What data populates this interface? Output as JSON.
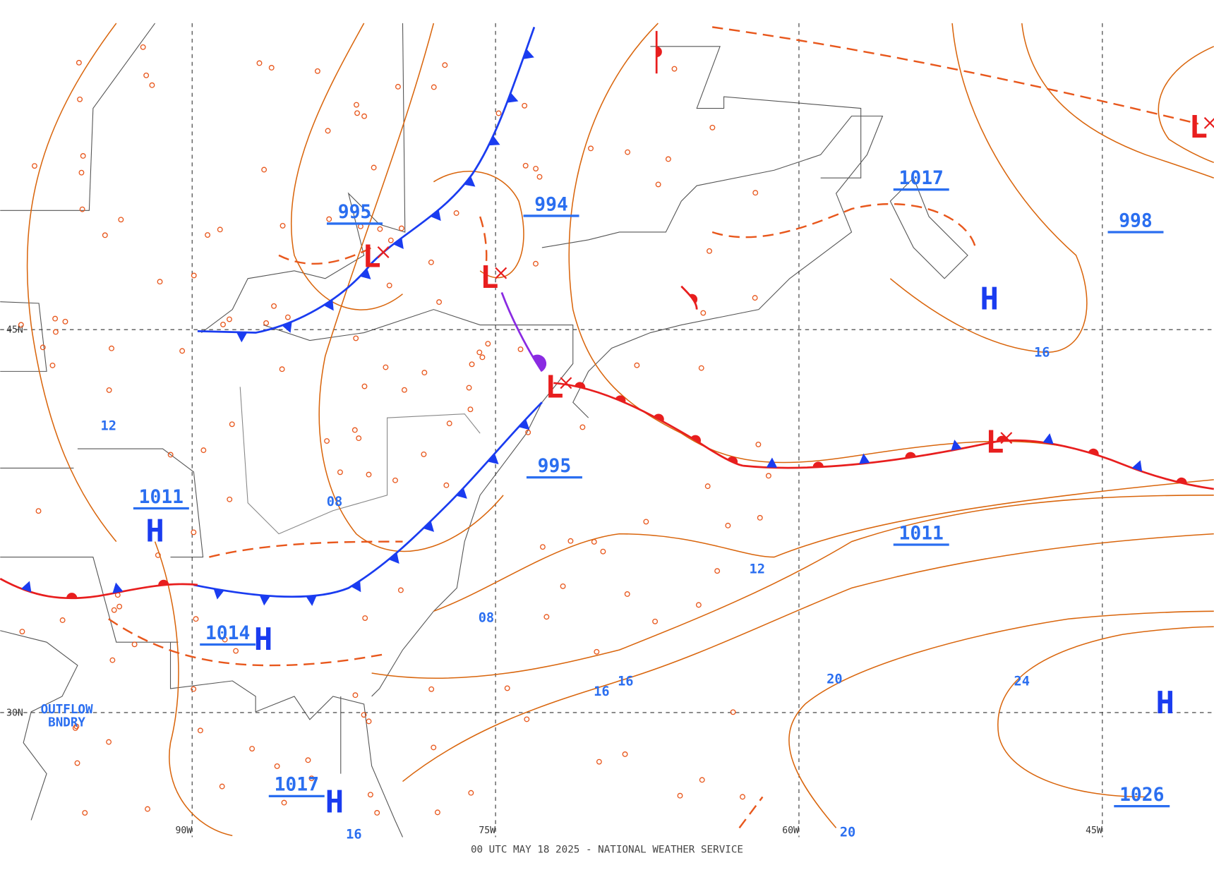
{
  "map": {
    "footer": "00 UTC MAY 18 2025 - NATIONAL WEATHER SERVICE",
    "lat_labels": [
      "45N",
      "30N"
    ],
    "lon_labels": [
      "90W",
      "75W",
      "60W",
      "45W"
    ],
    "pressure_labels": [
      "995",
      "994",
      "995",
      "1017",
      "998",
      "1011",
      "1011",
      "1014",
      "1017",
      "1026"
    ],
    "center_symbols": [
      "L",
      "L",
      "L",
      "L",
      "L",
      "H",
      "H",
      "H",
      "H",
      "H"
    ],
    "isobar_labels": [
      "16",
      "12",
      "08",
      "12",
      "08",
      "16",
      "16",
      "20",
      "24",
      "20",
      "16"
    ],
    "annotation": "OUTFLOW BNDRY"
  }
}
